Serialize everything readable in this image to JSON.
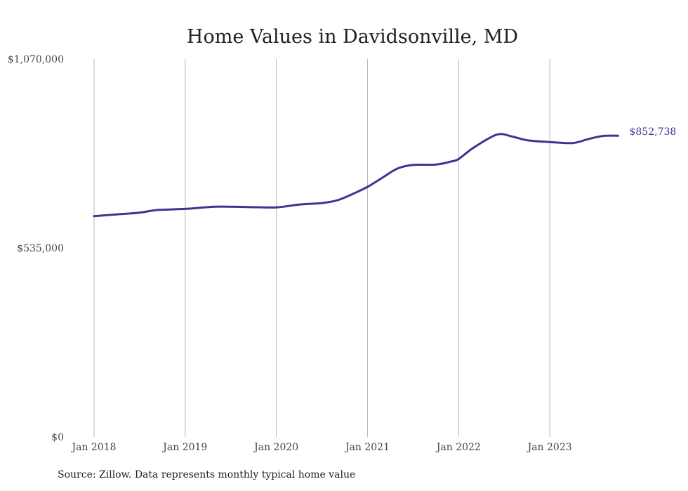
{
  "chart_data": {
    "type": "line",
    "title": "Home Values in Davidsonville, MD",
    "xlabel": "",
    "ylabel": "",
    "ylim": [
      0,
      1070000
    ],
    "y_ticks": [
      0,
      535000,
      1070000
    ],
    "y_tick_labels": [
      "$0",
      "$535,000",
      "$1,070,000"
    ],
    "x_ticks": [
      2018,
      2019,
      2020,
      2021,
      2022,
      2023
    ],
    "x_tick_labels": [
      "Jan 2018",
      "Jan 2019",
      "Jan 2020",
      "Jan 2021",
      "Jan 2022",
      "Jan 2023"
    ],
    "xlim": [
      2018,
      2023.7
    ],
    "grid": "vertical",
    "line_color": "#3b3595",
    "end_label": "$852,738",
    "series": [
      {
        "values": [
          [
            2018.0,
            625000
          ],
          [
            2018.25,
            630000
          ],
          [
            2018.5,
            635000
          ],
          [
            2018.67,
            642000
          ],
          [
            2018.83,
            644000
          ],
          [
            2019.08,
            647000
          ],
          [
            2019.33,
            652000
          ],
          [
            2019.67,
            651000
          ],
          [
            2020.0,
            650000
          ],
          [
            2020.25,
            658000
          ],
          [
            2020.5,
            662000
          ],
          [
            2020.67,
            670000
          ],
          [
            2020.83,
            687000
          ],
          [
            2021.0,
            708000
          ],
          [
            2021.17,
            735000
          ],
          [
            2021.33,
            760000
          ],
          [
            2021.5,
            770000
          ],
          [
            2021.75,
            771000
          ],
          [
            2021.92,
            780000
          ],
          [
            2022.0,
            787000
          ],
          [
            2022.17,
            820000
          ],
          [
            2022.42,
            856000
          ],
          [
            2022.58,
            851000
          ],
          [
            2022.75,
            840000
          ],
          [
            2023.0,
            835000
          ],
          [
            2023.25,
            832000
          ],
          [
            2023.42,
            843000
          ],
          [
            2023.58,
            852000
          ],
          [
            2023.75,
            852738
          ]
        ]
      }
    ]
  },
  "footer": {
    "source": "Source: Zillow. Data represents monthly typical home value"
  }
}
